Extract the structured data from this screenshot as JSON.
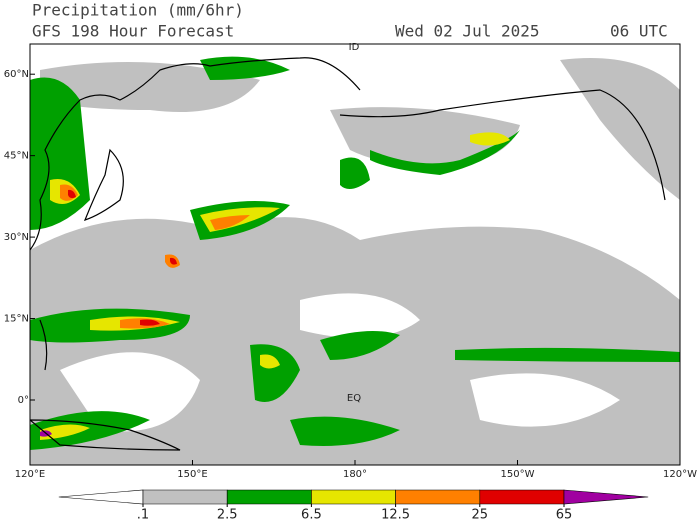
{
  "header": {
    "title": "Precipitation (mm/6hr)",
    "subtitle": "GFS 198 Hour Forecast",
    "date": "Wed 02 Jul 2025",
    "time": "06 UTC"
  },
  "map": {
    "lat_labels": [
      {
        "value": 60,
        "label": "60°N"
      },
      {
        "value": 45,
        "label": "45°N"
      },
      {
        "value": 30,
        "label": "30°N"
      },
      {
        "value": 15,
        "label": "15°N"
      },
      {
        "value": 0,
        "label": "0°"
      }
    ],
    "lon_labels": [
      {
        "value": 120,
        "label": "120°E"
      },
      {
        "value": 150,
        "label": "150°E"
      },
      {
        "value": 180,
        "label": "180°"
      },
      {
        "value": 210,
        "label": "150°W"
      },
      {
        "value": 240,
        "label": "120°W"
      }
    ],
    "dateline_label": "ID",
    "equator_label": "EQ"
  },
  "colorbar": {
    "levels": [
      {
        "value": 0.1,
        "label": ".1"
      },
      2.5,
      6.5,
      12.5,
      25,
      65
    ],
    "colors": [
      "#ffffff",
      "#c0c0c0",
      "#00a000",
      "#e6e600",
      "#ff8000",
      "#e00000",
      "#a000a0"
    ]
  }
}
